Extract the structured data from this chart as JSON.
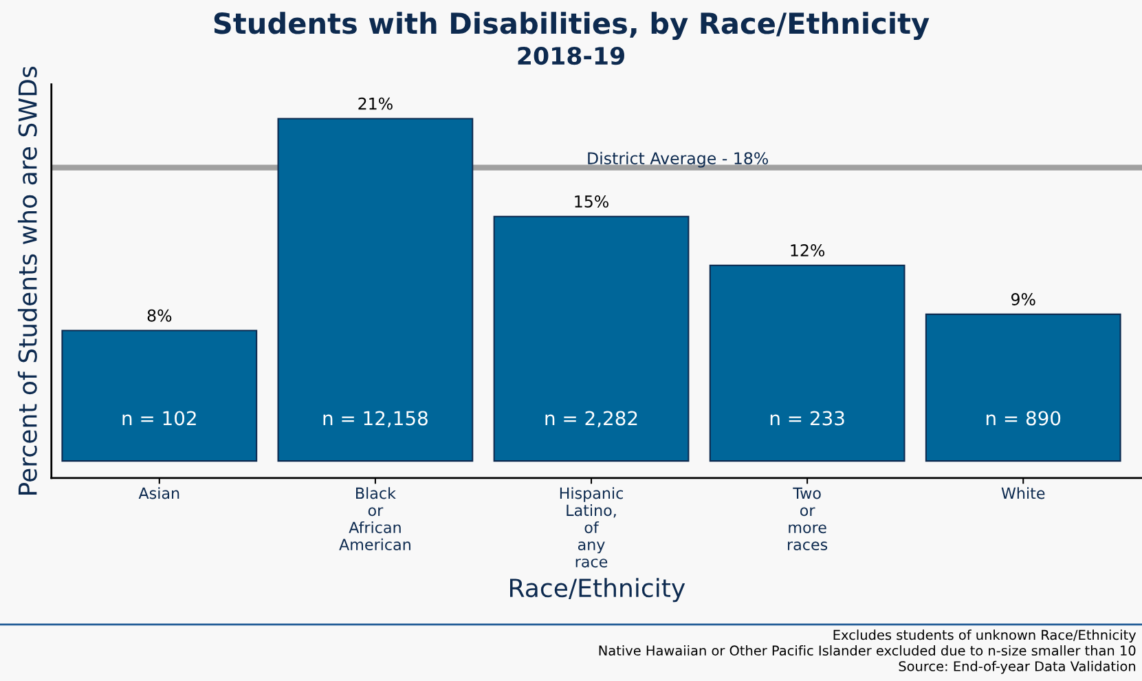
{
  "chart_data": {
    "type": "bar",
    "title": "Students with Disabilities, by Race/Ethnicity",
    "subtitle": "2018-19",
    "xlabel": "Race/Ethnicity",
    "ylabel": "Percent of Students who are SWDs",
    "categories": [
      "Asian",
      "Black or African American",
      "Hispanic Latino, of any race",
      "Two or more races",
      "White"
    ],
    "values": [
      8,
      21,
      15,
      12,
      9
    ],
    "color": "#006699",
    "value_labels": [
      "8%",
      "21%",
      "15%",
      "12%",
      "9%"
    ],
    "ref_lines": [
      {
        "axis": "y",
        "value": 18,
        "label": "District Average - 18%",
        "color": "#a0a0a0"
      }
    ],
    "annotations": [
      "n = 102",
      "n = 12,158",
      "n = 2,282",
      "n = 233",
      "n = 890",
      "Excludes students of unknown Race/Ethnicity",
      "Native Hawaiian or Other Pacific Islander excluded due to n-size smaller than 10",
      "Source: End-of-year Data Validation"
    ],
    "tick_labels": "x",
    "grid": false,
    "legend": false
  }
}
